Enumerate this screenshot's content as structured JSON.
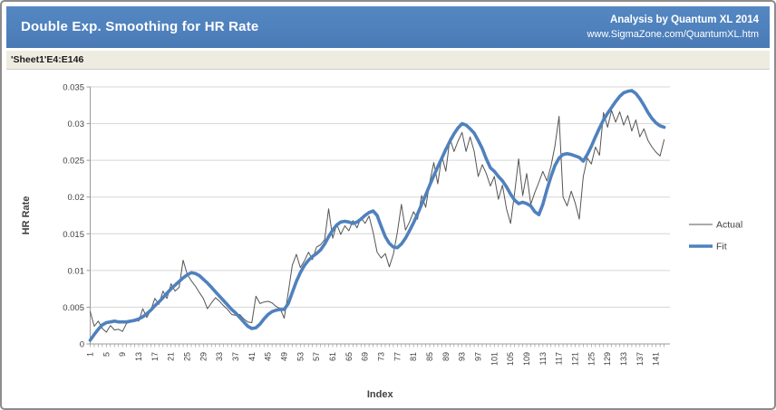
{
  "header": {
    "title": "Double Exp. Smoothing for HR Rate",
    "credit_line1": "Analysis by Quantum XL 2014",
    "credit_line2": "www.SigmaZone.com/QuantumXL.htm"
  },
  "range_ref": "'Sheet1'E4:E146",
  "colors": {
    "header_bg": "#4F81BD",
    "band_bg": "#EEECE1",
    "actual_line": "#555555",
    "fit_line": "#4F81BD",
    "gridline": "#D6D6D6",
    "axis": "#9A9A9A",
    "tick_text": "#404040"
  },
  "chart_data": {
    "type": "line",
    "title": "",
    "xlabel": "Index",
    "ylabel": "HR Rate",
    "xlim": [
      1,
      143
    ],
    "ylim": [
      0,
      0.035
    ],
    "grid": "horizontal",
    "legend_position": "right",
    "x_tick_labels": [
      "1",
      "5",
      "9",
      "13",
      "17",
      "21",
      "25",
      "29",
      "33",
      "37",
      "41",
      "45",
      "49",
      "53",
      "57",
      "61",
      "65",
      "69",
      "73",
      "77",
      "81",
      "85",
      "89",
      "93",
      "97",
      "101",
      "105",
      "109",
      "113",
      "117",
      "121",
      "125",
      "129",
      "133",
      "137",
      "141"
    ],
    "x_tick_step": 4,
    "y_tick_labels": [
      "0",
      "0.005",
      "0.01",
      "0.015",
      "0.02",
      "0.025",
      "0.03",
      "0.035"
    ],
    "y_tick_values": [
      0,
      0.005,
      0.01,
      0.015,
      0.02,
      0.025,
      0.03,
      0.035
    ],
    "series": [
      {
        "name": "Actual",
        "color": "#555555",
        "width": 1,
        "values": [
          0.0044,
          0.0024,
          0.0031,
          0.0021,
          0.0016,
          0.0025,
          0.0019,
          0.002,
          0.0017,
          0.0028,
          0.003,
          0.0034,
          0.0031,
          0.0048,
          0.0036,
          0.0046,
          0.0062,
          0.0054,
          0.0072,
          0.0062,
          0.0082,
          0.0072,
          0.0077,
          0.0114,
          0.0095,
          0.0086,
          0.0079,
          0.007,
          0.0062,
          0.0048,
          0.0056,
          0.0063,
          0.0058,
          0.0052,
          0.0047,
          0.004,
          0.0039,
          0.004,
          0.0034,
          0.003,
          0.0029,
          0.0065,
          0.0055,
          0.0057,
          0.0058,
          0.0056,
          0.0051,
          0.0048,
          0.0035,
          0.007,
          0.0107,
          0.0122,
          0.0104,
          0.0113,
          0.0125,
          0.0115,
          0.0132,
          0.0135,
          0.0142,
          0.0184,
          0.0144,
          0.0163,
          0.0149,
          0.0161,
          0.0154,
          0.0168,
          0.0158,
          0.0172,
          0.0164,
          0.0174,
          0.0152,
          0.0125,
          0.0117,
          0.0123,
          0.0105,
          0.0122,
          0.0152,
          0.019,
          0.0155,
          0.0166,
          0.018,
          0.017,
          0.0202,
          0.0186,
          0.022,
          0.0247,
          0.0218,
          0.0256,
          0.0235,
          0.028,
          0.0262,
          0.0276,
          0.0288,
          0.0262,
          0.0282,
          0.0262,
          0.0228,
          0.0244,
          0.0232,
          0.0215,
          0.0228,
          0.0197,
          0.0216,
          0.0184,
          0.0164,
          0.0205,
          0.0252,
          0.0202,
          0.0232,
          0.019,
          0.0206,
          0.022,
          0.0235,
          0.0222,
          0.0242,
          0.027,
          0.031,
          0.02,
          0.0188,
          0.0208,
          0.0192,
          0.017,
          0.0228,
          0.0253,
          0.0245,
          0.0268,
          0.0257,
          0.0315,
          0.0295,
          0.0318,
          0.0302,
          0.0316,
          0.0298,
          0.0311,
          0.029,
          0.0305,
          0.0282,
          0.0293,
          0.0277,
          0.0268,
          0.0261,
          0.0256,
          0.0278
        ]
      },
      {
        "name": "Fit",
        "color": "#4F81BD",
        "width": 3.6,
        "values": [
          0.0005,
          0.0013,
          0.002,
          0.0026,
          0.0029,
          0.003,
          0.0031,
          0.003,
          0.003,
          0.003,
          0.0031,
          0.0032,
          0.0034,
          0.0037,
          0.0041,
          0.0046,
          0.0052,
          0.0057,
          0.0063,
          0.0069,
          0.0075,
          0.008,
          0.0085,
          0.009,
          0.0094,
          0.0097,
          0.0096,
          0.0093,
          0.0088,
          0.0083,
          0.0077,
          0.0071,
          0.0065,
          0.0059,
          0.0053,
          0.0047,
          0.0042,
          0.0036,
          0.003,
          0.0024,
          0.0021,
          0.0022,
          0.0027,
          0.0034,
          0.004,
          0.0044,
          0.0046,
          0.0047,
          0.0047,
          0.0055,
          0.007,
          0.0085,
          0.0097,
          0.0107,
          0.0114,
          0.0119,
          0.0123,
          0.0128,
          0.0136,
          0.0146,
          0.0155,
          0.0162,
          0.0166,
          0.0167,
          0.0166,
          0.0164,
          0.0166,
          0.017,
          0.0175,
          0.0179,
          0.0181,
          0.0175,
          0.016,
          0.0146,
          0.0137,
          0.0132,
          0.0131,
          0.0136,
          0.0144,
          0.0154,
          0.0165,
          0.0177,
          0.019,
          0.0203,
          0.0216,
          0.0229,
          0.0241,
          0.0253,
          0.0265,
          0.0276,
          0.0286,
          0.0294,
          0.03,
          0.0298,
          0.0293,
          0.0287,
          0.0277,
          0.0266,
          0.0252,
          0.024,
          0.0235,
          0.0228,
          0.0222,
          0.0214,
          0.0204,
          0.0196,
          0.0191,
          0.0193,
          0.0191,
          0.0188,
          0.018,
          0.0176,
          0.019,
          0.021,
          0.0228,
          0.0243,
          0.0253,
          0.0258,
          0.0259,
          0.0258,
          0.0256,
          0.0254,
          0.0249,
          0.0258,
          0.0269,
          0.0282,
          0.0294,
          0.0305,
          0.0314,
          0.0322,
          0.033,
          0.0337,
          0.0342,
          0.0344,
          0.0345,
          0.0341,
          0.0334,
          0.0325,
          0.0315,
          0.0307,
          0.0301,
          0.0297,
          0.0295
        ]
      }
    ]
  }
}
